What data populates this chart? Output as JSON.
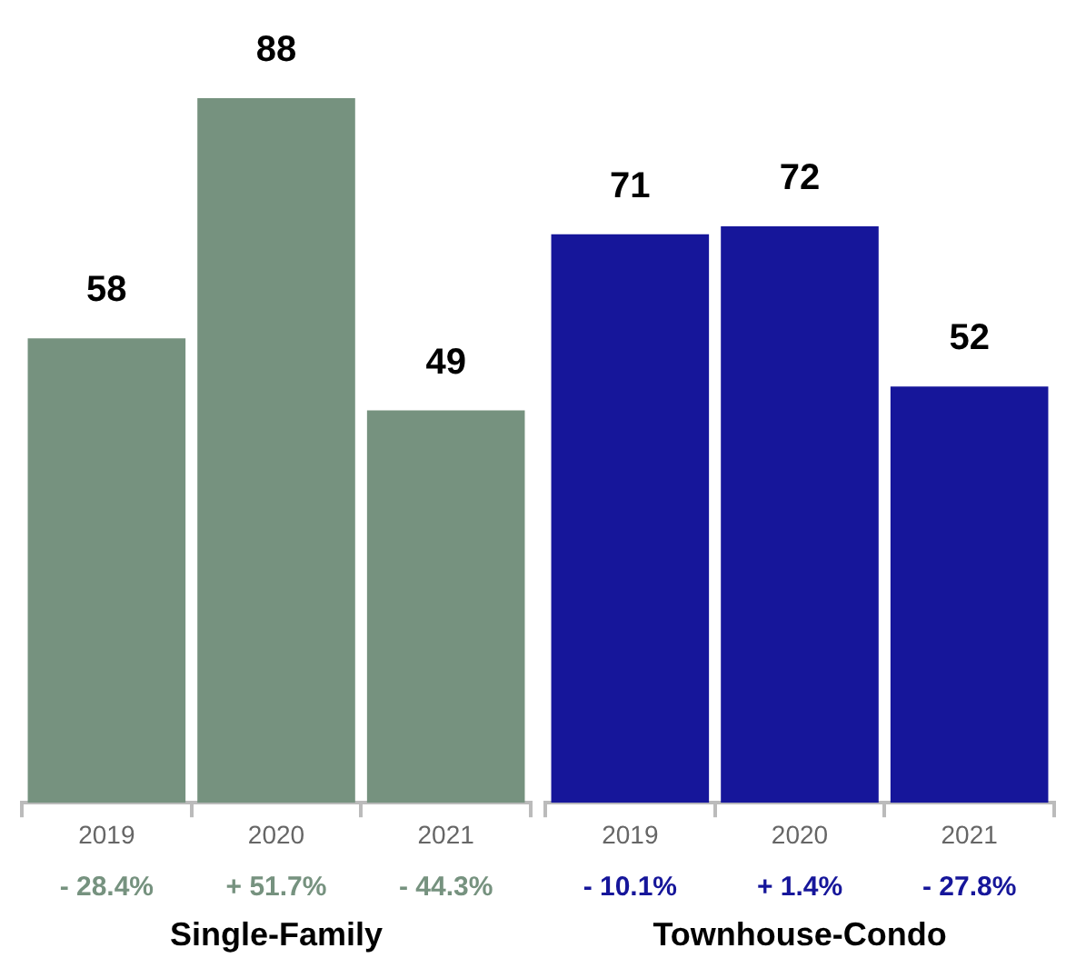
{
  "chart_data": [
    {
      "type": "bar",
      "xlabel": "Single-Family",
      "categories": [
        "2019",
        "2020",
        "2021"
      ],
      "values": [
        58,
        88,
        49
      ],
      "color": "#76927f",
      "data_labels": true,
      "tick_labels": "x",
      "annotations": [
        "- 28.4%",
        "+ 51.7%",
        "- 44.3%"
      ]
    },
    {
      "type": "bar",
      "xlabel": "Townhouse-Condo",
      "categories": [
        "2019",
        "2020",
        "2021"
      ],
      "values": [
        71,
        72,
        52
      ],
      "color": "#16169a",
      "data_labels": true,
      "tick_labels": "x",
      "annotations": [
        "- 10.1%",
        "+ 1.4%",
        "- 27.8%"
      ]
    }
  ]
}
